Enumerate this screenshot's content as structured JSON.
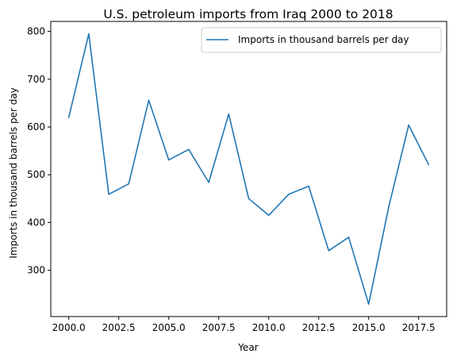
{
  "chart_data": {
    "type": "line",
    "title": "U.S. petroleum imports from Iraq 2000 to 2018",
    "xlabel": "Year",
    "ylabel": "Imports in thousand barrels per day",
    "x": [
      2000,
      2001,
      2002,
      2003,
      2004,
      2005,
      2006,
      2007,
      2008,
      2009,
      2010,
      2011,
      2012,
      2013,
      2014,
      2015,
      2016,
      2017,
      2018
    ],
    "series": [
      {
        "name": "Imports in thousand barrels per day",
        "color": "#1f77b4",
        "values": [
          620,
          795,
          459,
          481,
          656,
          531,
          553,
          484,
          627,
          450,
          415,
          459,
          476,
          341,
          369,
          229,
          432,
          604,
          521
        ]
      }
    ],
    "xlim": [
      1999.1,
      2018.9
    ],
    "ylim": [
      203,
      821
    ],
    "xticks": [
      2000.0,
      2002.5,
      2005.0,
      2007.5,
      2010.0,
      2012.5,
      2015.0,
      2017.5
    ],
    "xtick_labels": [
      "2000.0",
      "2002.5",
      "2005.0",
      "2007.5",
      "2010.0",
      "2012.5",
      "2015.0",
      "2017.5"
    ],
    "yticks": [
      300,
      400,
      500,
      600,
      700,
      800
    ],
    "ytick_labels": [
      "300",
      "400",
      "500",
      "600",
      "700",
      "800"
    ],
    "grid": false,
    "legend_position": "top-right"
  }
}
